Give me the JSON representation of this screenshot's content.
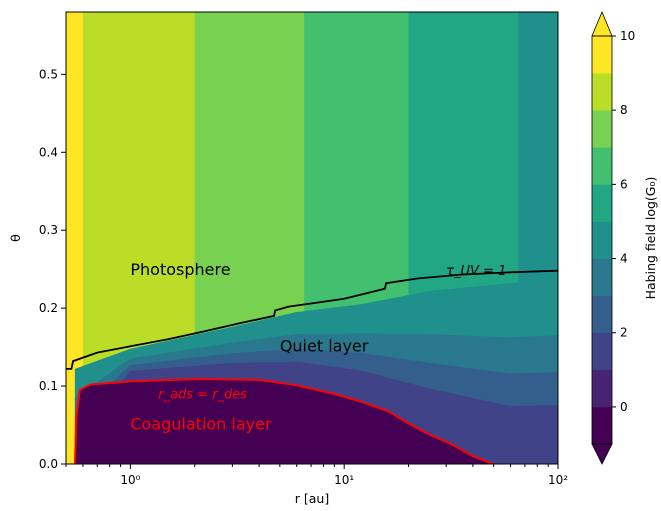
{
  "chart_data": {
    "type": "contour",
    "xlabel": "r [au]",
    "ylabel": "θ",
    "x_scale": "log",
    "xlim": [
      0.5,
      100
    ],
    "ylim": [
      0,
      0.58
    ],
    "x_ticks": [
      {
        "value": 1,
        "label": "10⁰"
      },
      {
        "value": 10,
        "label": "10¹"
      },
      {
        "value": 100,
        "label": "10²"
      }
    ],
    "y_ticks": [
      {
        "value": 0.0,
        "label": "0.0"
      },
      {
        "value": 0.1,
        "label": "0.1"
      },
      {
        "value": 0.2,
        "label": "0.2"
      },
      {
        "value": 0.3,
        "label": "0.3"
      },
      {
        "value": 0.4,
        "label": "0.4"
      },
      {
        "value": 0.5,
        "label": "0.5"
      }
    ],
    "colorbar": {
      "label": "Habing field log(G₀)",
      "min": -1,
      "max": 10,
      "extend": "both",
      "ticks": [
        0,
        2,
        4,
        6,
        8,
        10
      ],
      "levels": [
        -1,
        0,
        1,
        2,
        3,
        4,
        5,
        6,
        7,
        8,
        9,
        10
      ],
      "colors": [
        "#440154",
        "#482374",
        "#404387",
        "#345f8d",
        "#29788e",
        "#20908c",
        "#22a784",
        "#43bf70",
        "#79d151",
        "#bade28",
        "#fde725"
      ],
      "under_color": "#440154",
      "over_color": "#fde725"
    },
    "vertical_bands": [
      {
        "r_start": 0.5,
        "r_end": 0.6,
        "level": 9.5
      },
      {
        "r_start": 0.6,
        "r_end": 2.0,
        "level": 8.5
      },
      {
        "r_start": 2.0,
        "r_end": 6.5,
        "level": 7.5
      },
      {
        "r_start": 6.5,
        "r_end": 20,
        "level": 6.5
      },
      {
        "r_start": 20,
        "r_end": 65,
        "level": 5.5
      },
      {
        "r_start": 65,
        "r_end": 100,
        "level": 4.5
      }
    ],
    "tau_uv_curve": [
      {
        "r": 0.5,
        "theta": 0.122
      },
      {
        "r": 0.53,
        "theta": 0.122
      },
      {
        "r": 0.54,
        "theta": 0.132
      },
      {
        "r": 0.7,
        "theta": 0.143
      },
      {
        "r": 1.0,
        "theta": 0.151
      },
      {
        "r": 1.5,
        "theta": 0.16
      },
      {
        "r": 2.2,
        "theta": 0.17
      },
      {
        "r": 3.3,
        "theta": 0.181
      },
      {
        "r": 4.7,
        "theta": 0.19
      },
      {
        "r": 4.75,
        "theta": 0.197
      },
      {
        "r": 5.5,
        "theta": 0.202
      },
      {
        "r": 7.0,
        "theta": 0.206
      },
      {
        "r": 10,
        "theta": 0.212
      },
      {
        "r": 15.5,
        "theta": 0.225
      },
      {
        "r": 15.7,
        "theta": 0.232
      },
      {
        "r": 22,
        "theta": 0.238
      },
      {
        "r": 35,
        "theta": 0.243
      },
      {
        "r": 60,
        "theta": 0.246
      },
      {
        "r": 100,
        "theta": 0.248
      }
    ],
    "adsorption_curve": [
      {
        "r": 0.55,
        "theta": 0.0
      },
      {
        "r": 0.56,
        "theta": 0.06
      },
      {
        "r": 0.58,
        "theta": 0.095
      },
      {
        "r": 0.65,
        "theta": 0.102
      },
      {
        "r": 1.0,
        "theta": 0.106
      },
      {
        "r": 2.0,
        "theta": 0.109
      },
      {
        "r": 4.0,
        "theta": 0.108
      },
      {
        "r": 6.0,
        "theta": 0.101
      },
      {
        "r": 9.0,
        "theta": 0.09
      },
      {
        "r": 12.0,
        "theta": 0.08
      },
      {
        "r": 16.0,
        "theta": 0.068
      },
      {
        "r": 20.0,
        "theta": 0.052
      },
      {
        "r": 25.0,
        "theta": 0.038
      },
      {
        "r": 32.0,
        "theta": 0.025
      },
      {
        "r": 40.0,
        "theta": 0.01
      },
      {
        "r": 50.0,
        "theta": 0.0
      }
    ],
    "quiet_outer_boundary": [
      {
        "r": 0.55,
        "theta": 0.122
      },
      {
        "r": 1.0,
        "theta": 0.148
      },
      {
        "r": 3.0,
        "theta": 0.176
      },
      {
        "r": 6.0,
        "theta": 0.195
      },
      {
        "r": 12.0,
        "theta": 0.205
      },
      {
        "r": 25.0,
        "theta": 0.222
      },
      {
        "r": 60.0,
        "theta": 0.232
      },
      {
        "r": 100.0,
        "theta": 0.236
      }
    ],
    "annotations": [
      {
        "id": "photosphere",
        "text": "Photosphere",
        "r": 1.0,
        "theta": 0.25,
        "color": "#000000"
      },
      {
        "id": "tau",
        "text": "τ_UV = 1",
        "r": 30,
        "theta": 0.25,
        "color": "#000000"
      },
      {
        "id": "quiet",
        "text": "Quiet layer",
        "r": 5.0,
        "theta": 0.152,
        "color": "#000000"
      },
      {
        "id": "rads",
        "text": "r_ads = r_des",
        "r": 1.35,
        "theta": 0.092,
        "color": "#ff0000"
      },
      {
        "id": "coag",
        "text": "Coagulation layer",
        "r": 1.0,
        "theta": 0.052,
        "color": "#ff0000"
      }
    ]
  }
}
